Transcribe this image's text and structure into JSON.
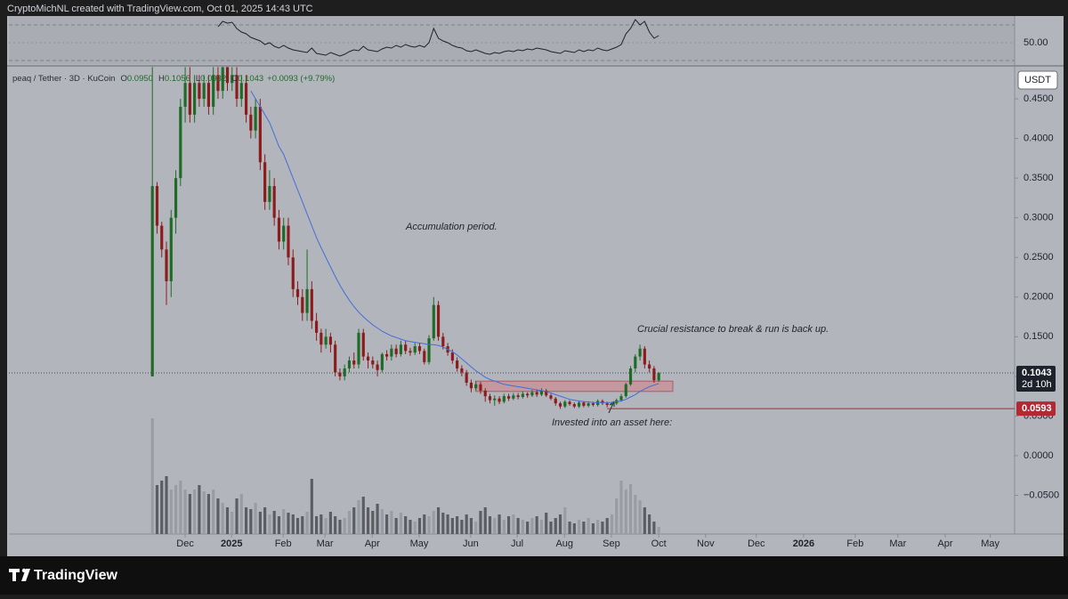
{
  "header": {
    "text": "CryptoMichNL created with TradingView.com, Oct 01, 2025 14:43 UTC"
  },
  "footer": {
    "brand": "TradingView"
  },
  "chart_data": {
    "type": "candlestick",
    "legend": {
      "symbol": "peaq / Tether · 3D · KuCoin",
      "items": [
        {
          "key": "O",
          "value": "0.0950"
        },
        {
          "key": "H",
          "value": "0.1056"
        },
        {
          "key": "L",
          "value": "0.0932"
        },
        {
          "key": "C",
          "value": "0.1043"
        }
      ],
      "change": "+0.0093 (+9.79%)"
    },
    "currency": "USDT",
    "countdown": "2d 10h",
    "categories": [
      null,
      null,
      null,
      null,
      null,
      null,
      null,
      null,
      null,
      null,
      null,
      null,
      null,
      null,
      null,
      null,
      null,
      null,
      null,
      null,
      null,
      null,
      null,
      null,
      null,
      null,
      null,
      null,
      null,
      null,
      null,
      null,
      null,
      null,
      null,
      null,
      null,
      null,
      null,
      null,
      null,
      null,
      null,
      null,
      null,
      null,
      null,
      null,
      null,
      null,
      null,
      null,
      null,
      null,
      null,
      null,
      null,
      null,
      null,
      null,
      null,
      null,
      null,
      null,
      null,
      null,
      null,
      null,
      null,
      null,
      null,
      null,
      null,
      null,
      null,
      null,
      null,
      null,
      null,
      null,
      null,
      null,
      null,
      null,
      null,
      null,
      null,
      null,
      null,
      null,
      null,
      null,
      null,
      null,
      null,
      null,
      null,
      null,
      null,
      null,
      null,
      null,
      null,
      null,
      null,
      null,
      null,
      null,
      null
    ],
    "open": [
      0.1,
      0.34,
      0.29,
      0.26,
      0.22,
      0.3,
      0.35,
      0.44,
      0.47,
      0.43,
      0.47,
      0.45,
      0.47,
      0.44,
      0.48,
      0.46,
      0.49,
      0.47,
      0.48,
      0.45,
      0.47,
      0.43,
      0.41,
      0.44,
      0.37,
      0.32,
      0.34,
      0.3,
      0.27,
      0.29,
      0.25,
      0.21,
      0.2,
      0.18,
      0.21,
      0.17,
      0.155,
      0.14,
      0.15,
      0.14,
      0.105,
      0.1,
      0.11,
      0.12,
      0.115,
      0.155,
      0.125,
      0.12,
      0.115,
      0.108,
      0.128,
      0.125,
      0.135,
      0.128,
      0.14,
      0.132,
      0.13,
      0.138,
      0.132,
      0.118,
      0.148,
      0.19,
      0.15,
      0.138,
      0.13,
      0.12,
      0.11,
      0.105,
      0.092,
      0.085,
      0.09,
      0.082,
      0.075,
      0.07,
      0.072,
      0.068,
      0.075,
      0.072,
      0.076,
      0.074,
      0.078,
      0.076,
      0.08,
      0.077,
      0.082,
      0.076,
      0.072,
      0.066,
      0.062,
      0.068,
      0.065,
      0.062,
      0.067,
      0.063,
      0.066,
      0.064,
      0.069,
      0.066,
      0.064,
      0.066,
      0.07,
      0.075,
      0.09,
      0.11,
      0.125,
      0.135,
      0.115,
      0.11,
      0.095
    ],
    "high": [
      0.49,
      0.345,
      0.295,
      0.27,
      0.31,
      0.36,
      0.45,
      0.49,
      0.49,
      0.48,
      0.48,
      0.48,
      0.48,
      0.49,
      0.49,
      0.49,
      0.49,
      0.49,
      0.49,
      0.48,
      0.48,
      0.44,
      0.45,
      0.45,
      0.38,
      0.36,
      0.35,
      0.31,
      0.3,
      0.3,
      0.26,
      0.22,
      0.21,
      0.26,
      0.22,
      0.18,
      0.16,
      0.16,
      0.155,
      0.145,
      0.11,
      0.115,
      0.125,
      0.13,
      0.16,
      0.16,
      0.13,
      0.125,
      0.12,
      0.13,
      0.133,
      0.14,
      0.14,
      0.145,
      0.145,
      0.136,
      0.142,
      0.142,
      0.135,
      0.152,
      0.2,
      0.195,
      0.155,
      0.142,
      0.134,
      0.124,
      0.114,
      0.108,
      0.096,
      0.094,
      0.093,
      0.085,
      0.078,
      0.076,
      0.075,
      0.078,
      0.078,
      0.079,
      0.079,
      0.081,
      0.08,
      0.083,
      0.083,
      0.085,
      0.084,
      0.078,
      0.074,
      0.068,
      0.07,
      0.07,
      0.067,
      0.069,
      0.069,
      0.068,
      0.068,
      0.071,
      0.071,
      0.068,
      0.068,
      0.072,
      0.078,
      0.092,
      0.113,
      0.128,
      0.14,
      0.138,
      0.12,
      0.113,
      0.1056
    ],
    "low": [
      0.1,
      0.28,
      0.25,
      0.19,
      0.2,
      0.28,
      0.34,
      0.42,
      0.42,
      0.42,
      0.44,
      0.44,
      0.43,
      0.43,
      0.45,
      0.45,
      0.46,
      0.46,
      0.44,
      0.44,
      0.42,
      0.4,
      0.4,
      0.36,
      0.31,
      0.31,
      0.29,
      0.26,
      0.26,
      0.24,
      0.2,
      0.19,
      0.17,
      0.17,
      0.16,
      0.145,
      0.13,
      0.135,
      0.13,
      0.1,
      0.095,
      0.095,
      0.105,
      0.11,
      0.11,
      0.12,
      0.11,
      0.11,
      0.1,
      0.105,
      0.12,
      0.12,
      0.124,
      0.125,
      0.128,
      0.126,
      0.127,
      0.128,
      0.115,
      0.115,
      0.145,
      0.145,
      0.134,
      0.126,
      0.116,
      0.106,
      0.1,
      0.088,
      0.08,
      0.082,
      0.078,
      0.068,
      0.066,
      0.063,
      0.065,
      0.066,
      0.069,
      0.07,
      0.071,
      0.072,
      0.073,
      0.074,
      0.074,
      0.075,
      0.074,
      0.07,
      0.063,
      0.059,
      0.06,
      0.063,
      0.06,
      0.06,
      0.061,
      0.061,
      0.062,
      0.062,
      0.064,
      0.061,
      0.062,
      0.064,
      0.068,
      0.073,
      0.088,
      0.105,
      0.12,
      0.11,
      0.105,
      0.092,
      0.0932
    ],
    "close": [
      0.34,
      0.29,
      0.26,
      0.22,
      0.3,
      0.35,
      0.44,
      0.47,
      0.43,
      0.47,
      0.45,
      0.47,
      0.44,
      0.48,
      0.46,
      0.49,
      0.47,
      0.48,
      0.45,
      0.47,
      0.43,
      0.41,
      0.44,
      0.37,
      0.32,
      0.34,
      0.3,
      0.27,
      0.29,
      0.25,
      0.21,
      0.2,
      0.18,
      0.21,
      0.17,
      0.155,
      0.14,
      0.15,
      0.14,
      0.105,
      0.1,
      0.11,
      0.12,
      0.115,
      0.155,
      0.125,
      0.12,
      0.115,
      0.108,
      0.128,
      0.125,
      0.135,
      0.128,
      0.14,
      0.132,
      0.13,
      0.138,
      0.132,
      0.118,
      0.148,
      0.19,
      0.15,
      0.138,
      0.13,
      0.12,
      0.11,
      0.105,
      0.092,
      0.085,
      0.09,
      0.082,
      0.075,
      0.07,
      0.072,
      0.068,
      0.075,
      0.072,
      0.076,
      0.074,
      0.078,
      0.076,
      0.08,
      0.077,
      0.082,
      0.076,
      0.072,
      0.066,
      0.062,
      0.068,
      0.065,
      0.062,
      0.067,
      0.063,
      0.066,
      0.064,
      0.069,
      0.066,
      0.064,
      0.066,
      0.07,
      0.075,
      0.09,
      0.11,
      0.125,
      0.135,
      0.115,
      0.11,
      0.095,
      0.1043
    ],
    "ma": [
      null,
      null,
      null,
      null,
      null,
      null,
      null,
      null,
      null,
      null,
      null,
      null,
      null,
      null,
      null,
      null,
      null,
      null,
      null,
      null,
      null,
      0.46,
      0.45,
      0.44,
      0.43,
      0.42,
      0.405,
      0.39,
      0.38,
      0.365,
      0.35,
      0.335,
      0.32,
      0.305,
      0.29,
      0.275,
      0.262,
      0.25,
      0.238,
      0.226,
      0.215,
      0.205,
      0.196,
      0.188,
      0.181,
      0.175,
      0.17,
      0.165,
      0.161,
      0.157,
      0.154,
      0.151,
      0.149,
      0.147,
      0.145,
      0.144,
      0.143,
      0.142,
      0.141,
      0.14,
      0.14,
      0.139,
      0.137,
      0.134,
      0.131,
      0.127,
      0.122,
      0.117,
      0.112,
      0.107,
      0.103,
      0.099,
      0.096,
      0.094,
      0.092,
      0.09,
      0.089,
      0.088,
      0.087,
      0.086,
      0.085,
      0.084,
      0.083,
      0.082,
      0.081,
      0.079,
      0.077,
      0.075,
      0.073,
      0.071,
      0.07,
      0.069,
      0.068,
      0.068,
      0.067,
      0.067,
      0.067,
      0.067,
      0.067,
      0.068,
      0.069,
      0.071,
      0.074,
      0.077,
      0.081,
      0.084,
      0.087,
      0.089,
      0.091
    ],
    "volume": [
      130,
      55,
      60,
      65,
      50,
      55,
      60,
      50,
      45,
      50,
      55,
      48,
      45,
      50,
      40,
      35,
      30,
      25,
      40,
      45,
      30,
      28,
      35,
      25,
      30,
      22,
      26,
      20,
      28,
      24,
      22,
      18,
      20,
      25,
      62,
      20,
      22,
      18,
      25,
      20,
      16,
      18,
      26,
      30,
      38,
      42,
      30,
      26,
      34,
      28,
      22,
      26,
      18,
      24,
      20,
      16,
      14,
      18,
      22,
      20,
      26,
      30,
      24,
      22,
      18,
      20,
      16,
      22,
      18,
      14,
      26,
      30,
      20,
      18,
      22,
      16,
      20,
      22,
      18,
      16,
      14,
      18,
      20,
      16,
      24,
      14,
      18,
      22,
      30,
      14,
      12,
      16,
      14,
      18,
      12,
      16,
      14,
      18,
      22,
      40,
      60,
      50,
      56,
      44,
      38,
      30,
      22,
      14,
      8
    ],
    "rsi": [
      null,
      null,
      null,
      null,
      null,
      null,
      null,
      null,
      null,
      null,
      null,
      null,
      null,
      null,
      68,
      74,
      72,
      73,
      66,
      62,
      60,
      56,
      54,
      52,
      48,
      50,
      46,
      44,
      47,
      44,
      42,
      41,
      40,
      39,
      44,
      38,
      37,
      36,
      39,
      37,
      35,
      37,
      40,
      42,
      41,
      46,
      42,
      41,
      40,
      43,
      45,
      44,
      47,
      45,
      48,
      46,
      45,
      47,
      45,
      50,
      66,
      55,
      52,
      50,
      47,
      45,
      44,
      41,
      40,
      42,
      40,
      38,
      37,
      39,
      38,
      40,
      41,
      40,
      42,
      41,
      43,
      42,
      44,
      43,
      42,
      40,
      39,
      38,
      41,
      40,
      39,
      42,
      40,
      42,
      41,
      44,
      42,
      41,
      43,
      45,
      48,
      60,
      66,
      76,
      70,
      74,
      62,
      55,
      58
    ],
    "rsi_ylim": [
      26,
      80
    ],
    "rsi_ticks": [
      {
        "value": 50,
        "label": "50.00"
      }
    ],
    "rsi_bands": [
      70,
      30
    ],
    "xlim": [
      -30.6,
      183.9
    ],
    "xticks": [
      {
        "value": 7.0,
        "label": "Dec"
      },
      {
        "value": 16.9,
        "label": "2025"
      },
      {
        "value": 27.9,
        "label": "Feb"
      },
      {
        "value": 36.8,
        "label": "Mar"
      },
      {
        "value": 46.9,
        "label": "Apr"
      },
      {
        "value": 56.9,
        "label": "May"
      },
      {
        "value": 67.9,
        "label": "Jun"
      },
      {
        "value": 77.8,
        "label": "Jul"
      },
      {
        "value": 87.9,
        "label": "Aug"
      },
      {
        "value": 97.9,
        "label": "Sep"
      },
      {
        "value": 108,
        "label": "Oct"
      },
      {
        "value": 118,
        "label": "Nov"
      },
      {
        "value": 128.8,
        "label": "Dec"
      },
      {
        "value": 138.9,
        "label": "2026"
      },
      {
        "value": 149.9,
        "label": "Feb"
      },
      {
        "value": 159,
        "label": "Mar"
      },
      {
        "value": 169.1,
        "label": "Apr"
      },
      {
        "value": 178.7,
        "label": "May"
      }
    ],
    "ylim": [
      -0.0988,
      0.4893
    ],
    "yticks": [
      {
        "value": 0.45,
        "label": "0.4500"
      },
      {
        "value": 0.4,
        "label": "0.4000"
      },
      {
        "value": 0.35,
        "label": "0.3500"
      },
      {
        "value": 0.3,
        "label": "0.3000"
      },
      {
        "value": 0.25,
        "label": "0.2500"
      },
      {
        "value": 0.2,
        "label": "0.2000"
      },
      {
        "value": 0.15,
        "label": "0.1500"
      },
      {
        "value": 0.1,
        "label": "0.1000"
      },
      {
        "value": 0.05,
        "label": "0.0500"
      },
      {
        "value": 0,
        "label": "0.0000"
      },
      {
        "value": -0.05,
        "label": "−0.0500"
      }
    ],
    "level": 0.0593,
    "level_color": "#b22833",
    "zone": [
      0.081,
      0.094
    ],
    "zone_color": "#c98f95",
    "up_color": "#1d6b27",
    "down_color": "#8c1c1c",
    "volume_colors": {
      "up": "#9a9ca4",
      "down": "#5b5d63"
    },
    "ma_color": "#3f6fd8",
    "rsi_color": "#1e222d",
    "annotations": [
      "Accumulation period.",
      "Crucial resistance to break & run is back up.",
      "Invested into an asset here:"
    ]
  }
}
